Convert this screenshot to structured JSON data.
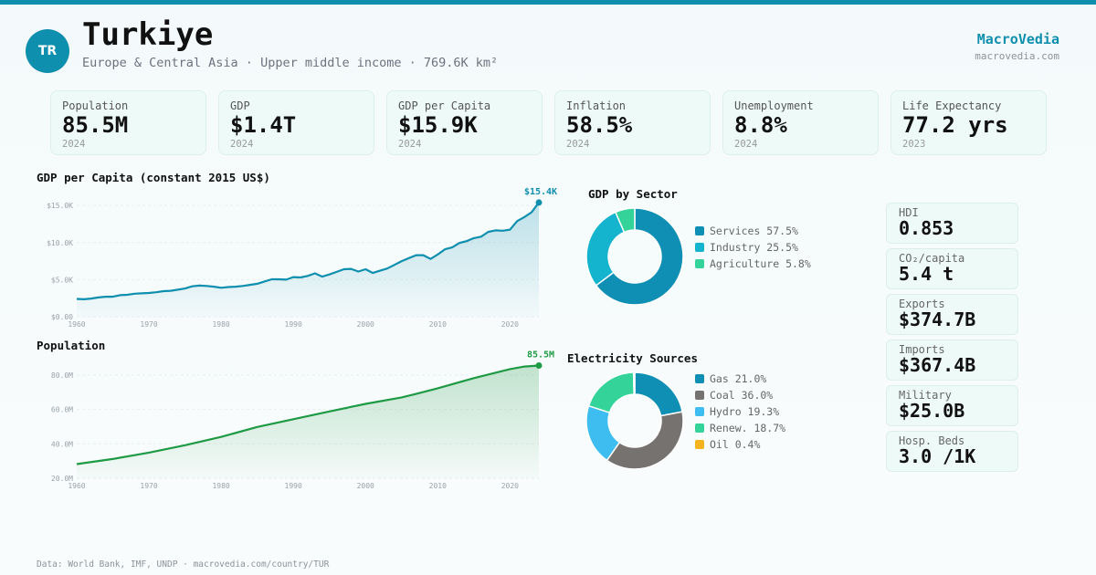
{
  "header": {
    "flag_code": "TR",
    "country": "Turkiye",
    "subtitle": "Europe & Central Asia · Upper middle income · 769.6K km²",
    "brand": "MacroVedia",
    "brand_url": "macrovedia.com"
  },
  "kpis": [
    {
      "label": "Population",
      "value": "85.5M",
      "year": "2024"
    },
    {
      "label": "GDP",
      "value": "$1.4T",
      "year": "2024"
    },
    {
      "label": "GDP per Capita",
      "value": "$15.9K",
      "year": "2024"
    },
    {
      "label": "Inflation",
      "value": "58.5%",
      "year": "2024"
    },
    {
      "label": "Unemployment",
      "value": "8.8%",
      "year": "2024"
    },
    {
      "label": "Life Expectancy",
      "value": "77.2 yrs",
      "year": "2023"
    }
  ],
  "stats": [
    {
      "label": "HDI",
      "value": "0.853"
    },
    {
      "label": "CO₂/capita",
      "value": "5.4 t"
    },
    {
      "label": "Exports",
      "value": "$374.7B"
    },
    {
      "label": "Imports",
      "value": "$367.4B"
    },
    {
      "label": "Military",
      "value": "$25.0B"
    },
    {
      "label": "Hosp. Beds",
      "value": "3.0 /1K"
    }
  ],
  "colors": {
    "accent": "#0f8fae",
    "gdp_line": "#0f8fae",
    "pop_line": "#1f9a44"
  },
  "footer": "Data: World Bank, IMF, UNDP · macrovedia.com/country/TUR",
  "chart_data": [
    {
      "id": "gdp_per_capita",
      "type": "area",
      "title": "GDP per Capita (constant 2015 US$)",
      "end_label": "$15.4K",
      "xlim": [
        1960,
        2024
      ],
      "ylim": [
        0,
        16500
      ],
      "x_ticks": [
        1960,
        1970,
        1980,
        1990,
        2000,
        2010,
        2020
      ],
      "y_ticks": [
        0,
        5000,
        10000,
        15000
      ],
      "y_tick_labels": [
        "$0.00",
        "$5.0K",
        "$10.0K",
        "$15.0K"
      ],
      "grid": true,
      "x": [
        1960,
        1961,
        1962,
        1963,
        1964,
        1965,
        1966,
        1967,
        1968,
        1969,
        1970,
        1971,
        1972,
        1973,
        1974,
        1975,
        1976,
        1977,
        1978,
        1979,
        1980,
        1981,
        1982,
        1983,
        1984,
        1985,
        1986,
        1987,
        1988,
        1989,
        1990,
        1991,
        1992,
        1993,
        1994,
        1995,
        1996,
        1997,
        1998,
        1999,
        2000,
        2001,
        2002,
        2003,
        2004,
        2005,
        2006,
        2007,
        2008,
        2009,
        2010,
        2011,
        2012,
        2013,
        2014,
        2015,
        2016,
        2017,
        2018,
        2019,
        2020,
        2021,
        2022,
        2023,
        2024
      ],
      "values": [
        2400,
        2350,
        2450,
        2600,
        2700,
        2700,
        2900,
        2950,
        3100,
        3150,
        3200,
        3300,
        3450,
        3500,
        3650,
        3800,
        4100,
        4200,
        4150,
        4050,
        3900,
        4000,
        4050,
        4150,
        4300,
        4450,
        4750,
        5050,
        5050,
        5000,
        5350,
        5300,
        5500,
        5850,
        5400,
        5700,
        6050,
        6400,
        6450,
        6100,
        6400,
        5900,
        6200,
        6500,
        7000,
        7500,
        7900,
        8300,
        8300,
        7800,
        8400,
        9100,
        9350,
        9950,
        10200,
        10600,
        10800,
        11450,
        11650,
        11600,
        11750,
        12900,
        13450,
        14100,
        15400
      ]
    },
    {
      "id": "population",
      "type": "area",
      "title": "Population",
      "end_label": "85.5M",
      "xlim": [
        1960,
        2024
      ],
      "ylim": [
        20,
        90
      ],
      "x_ticks": [
        1960,
        1970,
        1980,
        1990,
        2000,
        2010,
        2020
      ],
      "y_ticks": [
        20,
        40,
        60,
        80
      ],
      "y_tick_labels": [
        "20.0M",
        "40.0M",
        "60.0M",
        "80.0M"
      ],
      "grid": true,
      "x": [
        1960,
        1965,
        1970,
        1975,
        1980,
        1985,
        1990,
        1995,
        2000,
        2005,
        2007,
        2010,
        2015,
        2020,
        2022,
        2024
      ],
      "values": [
        28.2,
        31.2,
        34.9,
        39.2,
        44.0,
        49.8,
        54.3,
        58.8,
        63.2,
        67.0,
        69.0,
        72.3,
        78.2,
        83.4,
        84.9,
        85.5
      ]
    },
    {
      "id": "gdp_by_sector",
      "type": "pie",
      "title": "GDP by Sector",
      "labels": [
        "Services 57.5%",
        "Industry 25.5%",
        "Agriculture 5.8%"
      ],
      "values": [
        57.5,
        25.5,
        5.8
      ],
      "colors": [
        "#0f8fb4",
        "#14b4cf",
        "#34d39a"
      ]
    },
    {
      "id": "electricity_sources",
      "type": "pie",
      "title": "Electricity Sources",
      "labels": [
        "Gas 21.0%",
        "Coal 36.0%",
        "Hydro 19.3%",
        "Renew. 18.7%",
        "Oil 0.4%"
      ],
      "values": [
        21.0,
        36.0,
        19.3,
        18.7,
        0.4
      ],
      "colors": [
        "#0f8fb4",
        "#767270",
        "#3ebdf0",
        "#34d39a",
        "#f5b41e"
      ]
    }
  ]
}
